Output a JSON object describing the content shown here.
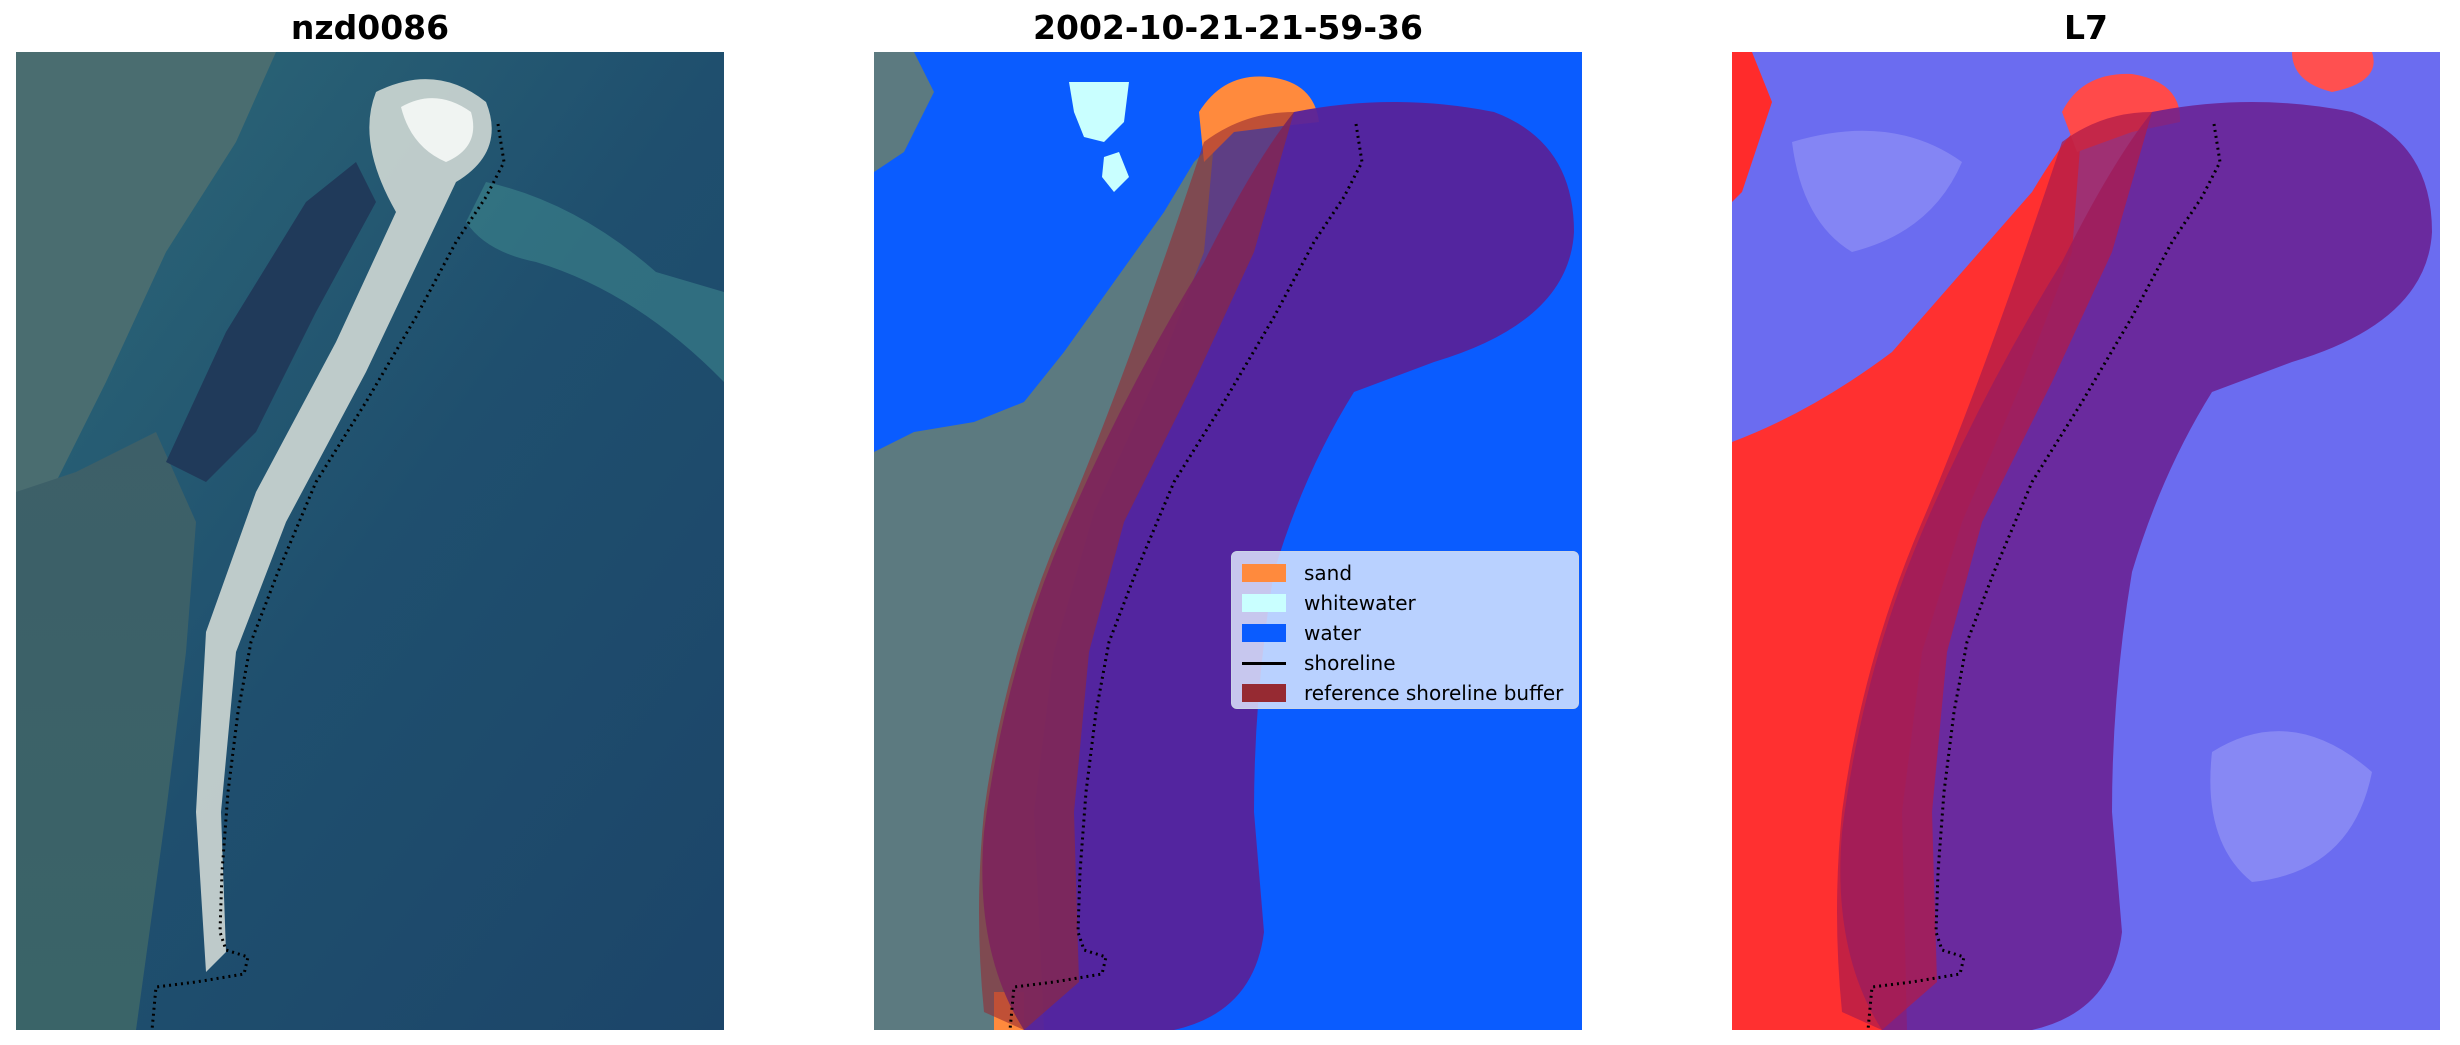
{
  "panels": [
    {
      "title": "nzd0086"
    },
    {
      "title": "2002-10-21-21-59-36"
    },
    {
      "title": "L7"
    }
  ],
  "legend": {
    "items": [
      {
        "label": "sand",
        "color": "#ff8a3d",
        "kind": "patch"
      },
      {
        "label": "whitewater",
        "color": "#c9ffff",
        "kind": "patch"
      },
      {
        "label": "water",
        "color": "#0a5cff",
        "kind": "patch"
      },
      {
        "label": "shoreline",
        "color": "#000000",
        "kind": "line"
      },
      {
        "label": "reference shoreline buffer",
        "color": "#962a32",
        "kind": "patch"
      }
    ]
  },
  "colors": {
    "water_class": "#0a5cff",
    "sand_class": "#ff8a3d",
    "whitewater_class": "#c9ffff",
    "buffer": "#962a32",
    "buffer_over_water": "#57229a",
    "shoreline": "#000000",
    "index_positive": "#ff1a1a",
    "index_negative": "#5a5ae8"
  }
}
